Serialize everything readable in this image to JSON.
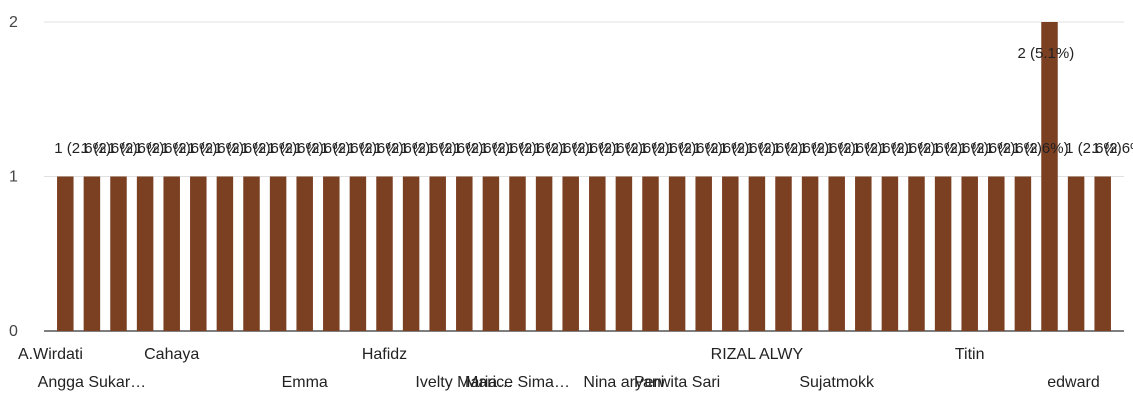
{
  "chart_data": {
    "type": "bar",
    "bar_color": "#7b3f22",
    "grid": true,
    "ylim": [
      0,
      2
    ],
    "yticks": [
      0,
      1,
      2
    ],
    "categories": [
      "A.Wirdati",
      "Angga Sukar…",
      "",
      "",
      "Cahaya",
      "",
      "",
      "",
      "",
      "Emma",
      "",
      "",
      "Hafidz",
      "",
      "",
      "Ivelty Maria…",
      "",
      "Marice Sima…",
      "",
      "",
      "",
      "Nina aryani",
      "",
      "Perwita Sari",
      "",
      "",
      "RIZAL ALWY",
      "",
      "",
      "Sujatmokk",
      "",
      "",
      "",
      "",
      "Titin",
      "",
      "",
      "edward",
      "",
      ""
    ],
    "values": [
      1,
      1,
      1,
      1,
      1,
      1,
      1,
      1,
      1,
      1,
      1,
      1,
      1,
      1,
      1,
      1,
      1,
      1,
      1,
      1,
      1,
      1,
      1,
      1,
      1,
      1,
      1,
      1,
      1,
      1,
      1,
      1,
      1,
      1,
      1,
      1,
      1,
      2,
      1,
      1
    ],
    "data_labels": [
      "1 (2.6%)",
      "1 (2.6%)",
      "1 (2.6%)",
      "1 (2.6%)",
      "1 (2.6%)",
      "1 (2.6%)",
      "1 (2.6%)",
      "1 (2.6%)",
      "1 (2.6%)",
      "1 (2.6%)",
      "1 (2.6%)",
      "1 (2.6%)",
      "1 (2.6%)",
      "1 (2.6%)",
      "1 (2.6%)",
      "1 (2.6%)",
      "1 (2.6%)",
      "1 (2.6%)",
      "1 (2.6%)",
      "1 (2.6%)",
      "1 (2.6%)",
      "1 (2.6%)",
      "1 (2.6%)",
      "1 (2.6%)",
      "1 (2.6%)",
      "1 (2.6%)",
      "1 (2.6%)",
      "1 (2.6%)",
      "1 (2.6%)",
      "1 (2.6%)",
      "1 (2.6%)",
      "1 (2.6%)",
      "1 (2.6%)",
      "1 (2.6%)",
      "1 (2.6%)",
      "1 (2.6%)",
      "1 (2.6%)",
      "2 (5.1%)",
      "1 (2.6%)",
      "1 (2.6%)"
    ]
  }
}
